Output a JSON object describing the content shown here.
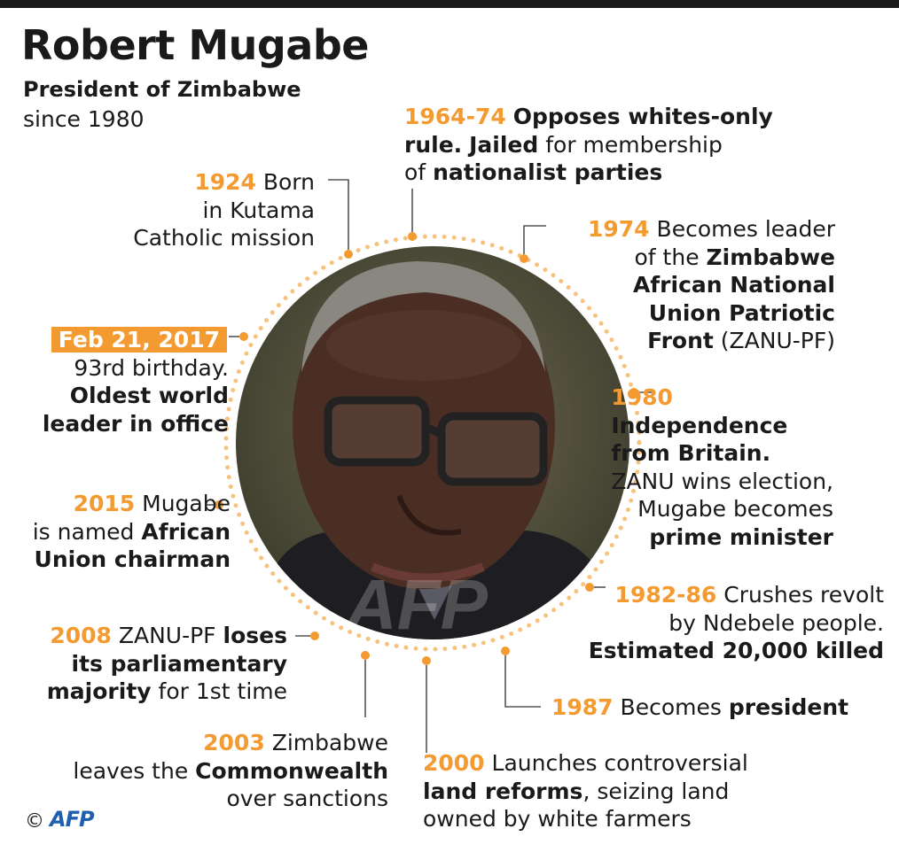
{
  "header": {
    "title": "Robert Mugabe",
    "subtitle": "President of Zimbabwe",
    "since": "since 1980"
  },
  "events": {
    "e1964": {
      "year": "1964-74",
      "b1": "Opposes whites-only",
      "b2": "rule.",
      "b3": "Jailed",
      "t1": "for membership",
      "t2": "of",
      "b4": "nationalist parties"
    },
    "e1924": {
      "year": "1924",
      "t1": "Born",
      "t2": "in Kutama",
      "t3": "Catholic mission"
    },
    "e1974": {
      "year": "1974",
      "t1": "Becomes leader",
      "t2": "of the",
      "b1": "Zimbabwe",
      "b2": "African National",
      "b3": "Union Patriotic",
      "b4": "Front",
      "t3": "(ZANU-PF)"
    },
    "e2017": {
      "date": "Feb 21, 2017",
      "t1": "93rd birthday.",
      "b1": "Oldest world",
      "b2": "leader in office"
    },
    "e1980": {
      "year": "1980",
      "b1": "Independence",
      "b2": "from Britain.",
      "t1": "ZANU wins election,",
      "t2": "Mugabe becomes",
      "b3": "prime minister"
    },
    "e2015": {
      "year": "2015",
      "t1": "Mugabe",
      "t2": "is named",
      "b1": "African",
      "b2": "Union chairman"
    },
    "e1982": {
      "year": "1982-86",
      "t1": "Crushes revolt",
      "t2": "by Ndebele people.",
      "b1": "Estimated 20,000 killed"
    },
    "e2008": {
      "year": "2008",
      "t1": "ZANU-PF",
      "b1": "loses",
      "b2": "its parliamentary",
      "b3": "majority",
      "t2": "for 1st time"
    },
    "e1987": {
      "year": "1987",
      "t1": "Becomes",
      "b1": "president"
    },
    "e2003": {
      "year": "2003",
      "t1": "Zimbabwe",
      "t2": "leaves the",
      "b1": "Commonwealth",
      "t3": "over sanctions"
    },
    "e2000": {
      "year": "2000",
      "t1": "Launches controversial",
      "b1": "land reforms",
      "t2": ", seizing land",
      "t3": "owned by white farmers"
    }
  },
  "photo": {
    "watermark": "AFP"
  },
  "footer": {
    "copyright": "©",
    "logo": "AFP"
  },
  "colors": {
    "accent": "#f39a30",
    "text": "#1a1a1a",
    "logo": "#1f5fb0"
  }
}
